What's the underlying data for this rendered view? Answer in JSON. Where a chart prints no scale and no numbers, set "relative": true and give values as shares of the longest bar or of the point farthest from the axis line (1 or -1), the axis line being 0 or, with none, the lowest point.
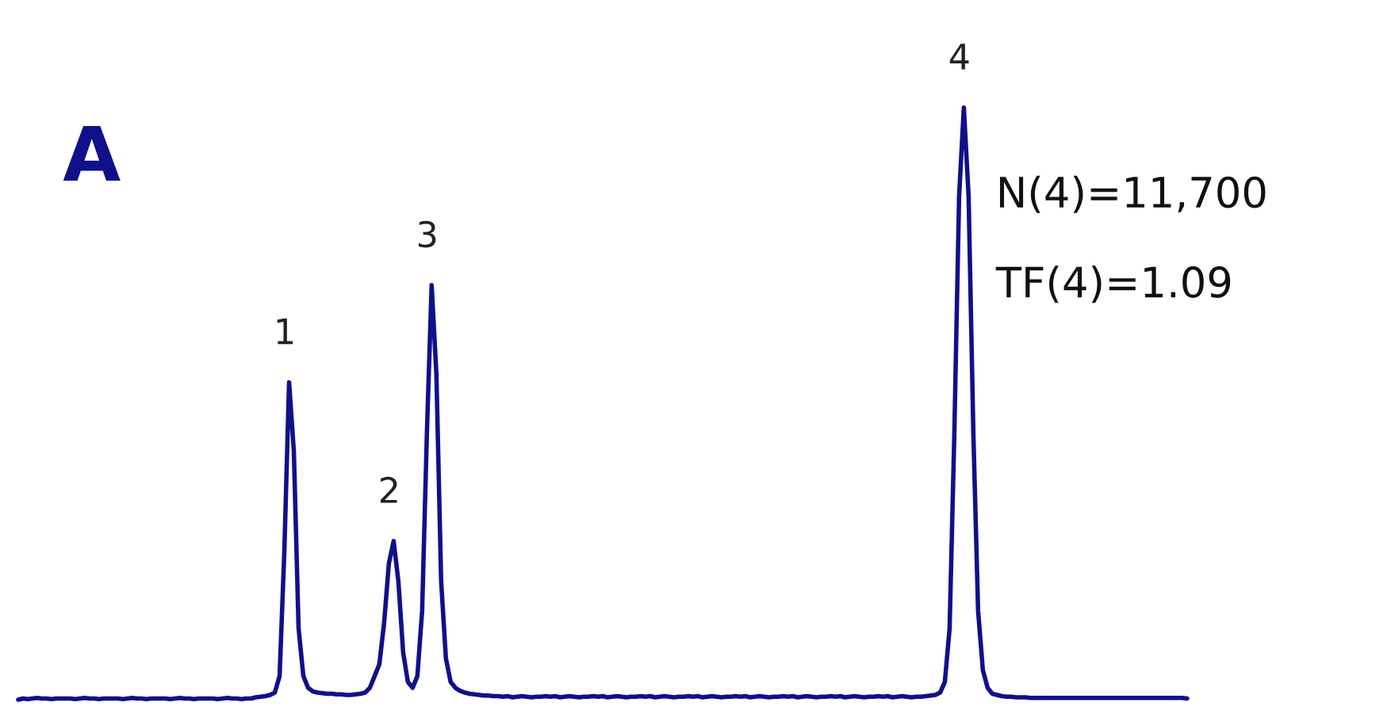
{
  "chart_data": {
    "type": "line",
    "relative": true,
    "title": "A",
    "annotations": [
      {
        "text": "1",
        "y": 0.536
      },
      {
        "text": "2",
        "y": 0.268
      },
      {
        "text": "3",
        "y": 0.7
      },
      {
        "text": "4",
        "y": 1
      },
      "N(4)=11,700",
      "TF(4)=1.09"
    ],
    "categories": [
      null,
      null,
      null,
      null,
      null,
      null,
      null,
      null,
      null,
      null,
      null,
      null,
      null,
      null,
      null,
      null,
      null,
      null,
      null,
      null,
      null,
      null,
      null,
      null,
      null,
      null,
      null,
      null,
      null,
      null,
      null,
      null,
      null,
      null,
      null,
      null,
      null,
      null,
      null,
      null,
      null,
      null,
      null,
      null,
      null,
      null,
      null,
      null,
      null,
      null,
      null,
      null,
      null,
      null,
      null,
      null,
      null,
      null,
      null,
      null,
      null,
      null,
      null,
      null,
      null,
      null,
      null,
      null,
      null,
      null,
      null,
      null,
      null,
      null,
      null,
      null,
      null,
      null,
      null,
      null,
      null,
      null,
      null,
      null,
      null,
      null,
      null,
      null,
      null,
      null,
      null,
      null,
      null,
      null,
      null,
      null,
      null,
      null,
      null,
      null,
      null,
      null,
      null,
      null,
      null,
      null,
      null,
      null,
      null,
      null,
      null,
      null,
      null,
      null,
      null,
      null,
      null,
      null,
      null,
      null,
      null,
      null,
      null,
      null,
      null,
      null,
      null,
      null,
      null,
      null,
      null,
      null,
      null,
      null,
      null,
      null,
      null,
      null,
      null,
      null,
      null,
      null,
      null,
      null,
      null,
      null,
      null,
      null,
      null,
      null,
      null,
      null,
      null,
      null,
      null,
      null,
      null,
      null,
      null,
      null,
      null,
      null,
      null,
      null,
      null,
      null,
      null,
      null,
      null,
      null,
      null,
      null,
      null,
      null,
      null,
      null,
      null,
      null,
      null,
      null,
      null,
      null,
      null,
      null,
      null,
      null,
      null,
      null,
      null,
      null,
      null,
      null,
      null,
      null,
      null,
      null,
      null,
      null,
      null,
      null,
      null,
      null,
      null,
      null,
      null,
      null,
      null,
      null,
      null,
      null,
      null,
      null,
      null,
      null,
      null,
      null,
      null,
      null,
      null,
      null,
      null,
      null,
      null,
      null,
      null,
      null,
      null,
      null,
      null,
      null,
      null,
      null,
      null,
      null,
      null,
      null,
      null,
      null,
      null,
      null,
      null,
      null,
      null,
      null,
      null,
      null,
      null
    ],
    "series": [
      {
        "color": "#10108a",
        "values": [
          0,
          0.002,
          0.001,
          0.002,
          0.003,
          0.002,
          0.002,
          0.001,
          0.002,
          0.002,
          0.002,
          0.002,
          0.001,
          0.002,
          0.003,
          0.002,
          0.002,
          0.001,
          0.002,
          0.002,
          0.002,
          0.002,
          0.001,
          0.002,
          0.003,
          0.002,
          0.002,
          0.001,
          0.002,
          0.002,
          0.002,
          0.002,
          0.001,
          0.002,
          0.003,
          0.002,
          0.002,
          0.001,
          0.002,
          0.002,
          0.002,
          0.002,
          0.001,
          0.002,
          0.003,
          0.002,
          0.002,
          0.001,
          0.002,
          0.002,
          0.004,
          0.005,
          0.006,
          0.008,
          0.012,
          0.04,
          0.25,
          0.536,
          0.42,
          0.12,
          0.04,
          0.02,
          0.014,
          0.012,
          0.011,
          0.01,
          0.01,
          0.009,
          0.009,
          0.008,
          0.008,
          0.009,
          0.01,
          0.012,
          0.02,
          0.04,
          0.06,
          0.13,
          0.23,
          0.268,
          0.2,
          0.08,
          0.03,
          0.02,
          0.04,
          0.15,
          0.45,
          0.7,
          0.55,
          0.2,
          0.07,
          0.03,
          0.02,
          0.015,
          0.012,
          0.01,
          0.009,
          0.008,
          0.007,
          0.007,
          0.006,
          0.006,
          0.005,
          0.006,
          0.004,
          0.005,
          0.006,
          0.005,
          0.004,
          0.005,
          0.005,
          0.006,
          0.005,
          0.006,
          0.004,
          0.005,
          0.006,
          0.005,
          0.004,
          0.005,
          0.005,
          0.006,
          0.005,
          0.006,
          0.004,
          0.005,
          0.006,
          0.005,
          0.004,
          0.005,
          0.005,
          0.006,
          0.005,
          0.006,
          0.004,
          0.005,
          0.006,
          0.005,
          0.004,
          0.005,
          0.005,
          0.006,
          0.005,
          0.006,
          0.004,
          0.005,
          0.006,
          0.005,
          0.004,
          0.005,
          0.005,
          0.006,
          0.005,
          0.006,
          0.004,
          0.005,
          0.006,
          0.005,
          0.004,
          0.005,
          0.005,
          0.006,
          0.005,
          0.006,
          0.004,
          0.005,
          0.006,
          0.005,
          0.004,
          0.005,
          0.005,
          0.006,
          0.005,
          0.006,
          0.004,
          0.005,
          0.006,
          0.005,
          0.004,
          0.005,
          0.005,
          0.006,
          0.005,
          0.006,
          0.004,
          0.005,
          0.006,
          0.005,
          0.004,
          0.005,
          0.005,
          0.006,
          0.007,
          0.008,
          0.012,
          0.03,
          0.12,
          0.45,
          0.85,
          1,
          0.85,
          0.45,
          0.15,
          0.05,
          0.02,
          0.01,
          0.008,
          0.006,
          0.005,
          0.005,
          0.004,
          0.004,
          0.004,
          0.003,
          0.003,
          0.003,
          0.003,
          0.003,
          0.003,
          0.003,
          0.003,
          0.003,
          0.003,
          0.003,
          0.003,
          0.003,
          0.003,
          0.003,
          0.003,
          0.003,
          0.003,
          0.003,
          0.003,
          0.003,
          0.003,
          0.003,
          0.003,
          0.003,
          0.003,
          0.003,
          0.003,
          0.003,
          0.003,
          0.003,
          0.003,
          0.003,
          0.002
        ]
      }
    ]
  }
}
